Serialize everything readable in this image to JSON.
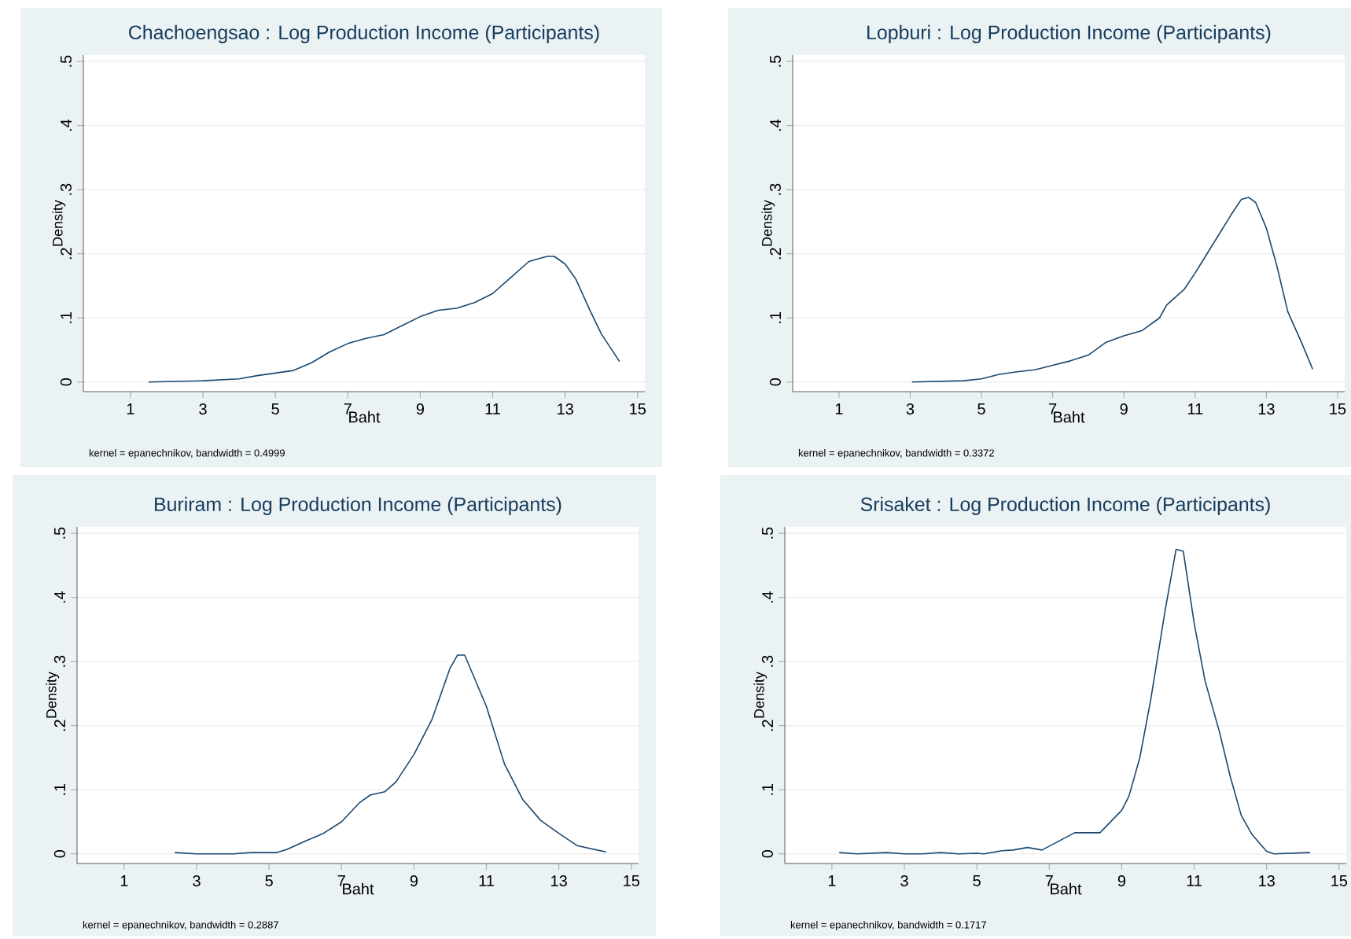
{
  "chart_data": [
    {
      "type": "line",
      "title": "Chachoengsao : Log Production Income (Participants)",
      "xlabel": "Baht",
      "ylabel": "Density",
      "color": "#1a476f",
      "grid": "y",
      "xlim": [
        -0.3,
        15.2
      ],
      "ylim": [
        -0.015,
        0.51
      ],
      "xticks": [
        1,
        3,
        5,
        7,
        9,
        11,
        13,
        15
      ],
      "yticks": [
        0,
        {
          "value": 0.1,
          "label": ".1"
        },
        {
          "value": 0.2,
          "label": ".2"
        },
        {
          "value": 0.3,
          "label": ".3"
        },
        {
          "value": 0.4,
          "label": ".4"
        },
        {
          "value": 0.5,
          "label": ".5"
        }
      ],
      "annotations": [
        "kernel = epanechnikov, bandwidth = 0.4999"
      ],
      "x": [
        1.5,
        3,
        4,
        4.5,
        5.5,
        6,
        6.5,
        7,
        7.5,
        8,
        8.5,
        9,
        9.5,
        10,
        10.5,
        11,
        11.5,
        12,
        12.5,
        12.7,
        13,
        13.3,
        13.7,
        14,
        14.5
      ],
      "values": [
        0,
        0.002,
        0.005,
        0.01,
        0.018,
        0.03,
        0.047,
        0.06,
        0.068,
        0.074,
        0.088,
        0.102,
        0.112,
        0.115,
        0.124,
        0.138,
        0.163,
        0.188,
        0.196,
        0.196,
        0.184,
        0.16,
        0.11,
        0.075,
        0.032
      ]
    },
    {
      "type": "line",
      "title": "Lopburi : Log Production Income (Participants)",
      "xlabel": "Baht",
      "ylabel": "Density",
      "color": "#1a476f",
      "grid": "y",
      "xlim": [
        -0.3,
        15.2
      ],
      "ylim": [
        -0.015,
        0.51
      ],
      "xticks": [
        1,
        3,
        5,
        7,
        9,
        11,
        13,
        15
      ],
      "yticks": [
        0,
        {
          "value": 0.1,
          "label": ".1"
        },
        {
          "value": 0.2,
          "label": ".2"
        },
        {
          "value": 0.3,
          "label": ".3"
        },
        {
          "value": 0.4,
          "label": ".4"
        },
        {
          "value": 0.5,
          "label": ".5"
        }
      ],
      "annotations": [
        "kernel = epanechnikov, bandwidth = 0.3372"
      ],
      "x": [
        3.05,
        4.5,
        5,
        5.5,
        6,
        6.5,
        7,
        7.5,
        8,
        8.5,
        9,
        9.5,
        10,
        10.2,
        10.7,
        11,
        11.5,
        12,
        12.3,
        12.5,
        12.7,
        13,
        13.3,
        13.6,
        14,
        14.3
      ],
      "values": [
        0,
        0.002,
        0.005,
        0.012,
        0.016,
        0.019,
        0.026,
        0.033,
        0.042,
        0.062,
        0.072,
        0.08,
        0.1,
        0.12,
        0.145,
        0.17,
        0.215,
        0.26,
        0.285,
        0.288,
        0.28,
        0.24,
        0.18,
        0.11,
        0.06,
        0.02
      ]
    },
    {
      "type": "line",
      "title": "Buriram : Log Production Income (Participants)",
      "xlabel": "Baht",
      "ylabel": "Density",
      "color": "#1a476f",
      "grid": "y",
      "xlim": [
        -0.3,
        15.2
      ],
      "ylim": [
        -0.015,
        0.51
      ],
      "xticks": [
        1,
        3,
        5,
        7,
        9,
        11,
        13,
        15
      ],
      "yticks": [
        0,
        {
          "value": 0.1,
          "label": ".1"
        },
        {
          "value": 0.2,
          "label": ".2"
        },
        {
          "value": 0.3,
          "label": ".3"
        },
        {
          "value": 0.4,
          "label": ".4"
        },
        {
          "value": 0.5,
          "label": ".5"
        }
      ],
      "annotations": [
        "kernel = epanechnikov, bandwidth = 0.2887"
      ],
      "x": [
        2.4,
        3,
        4,
        4.5,
        5.2,
        5.5,
        6,
        6.5,
        7,
        7.5,
        7.8,
        8.2,
        8.5,
        9,
        9.5,
        10,
        10.2,
        10.4,
        11,
        11.5,
        12,
        12.5,
        13,
        13.5,
        14.3
      ],
      "values": [
        0.002,
        0,
        0,
        0.002,
        0.002,
        0.007,
        0.02,
        0.032,
        0.05,
        0.08,
        0.092,
        0.097,
        0.112,
        0.155,
        0.21,
        0.29,
        0.31,
        0.31,
        0.23,
        0.14,
        0.085,
        0.052,
        0.032,
        0.013,
        0.003
      ]
    },
    {
      "type": "line",
      "title": "Srisaket : Log Production Income (Participants)",
      "xlabel": "Baht",
      "ylabel": "Density",
      "color": "#1a476f",
      "grid": "y",
      "xlim": [
        -0.3,
        15.2
      ],
      "ylim": [
        -0.015,
        0.51
      ],
      "xticks": [
        1,
        3,
        5,
        7,
        9,
        11,
        13,
        15
      ],
      "yticks": [
        0,
        {
          "value": 0.1,
          "label": ".1"
        },
        {
          "value": 0.2,
          "label": ".2"
        },
        {
          "value": 0.3,
          "label": ".3"
        },
        {
          "value": 0.4,
          "label": ".4"
        },
        {
          "value": 0.5,
          "label": ".5"
        }
      ],
      "annotations": [
        "kernel = epanechnikov, bandwidth = 0.1717"
      ],
      "x": [
        1.2,
        1.7,
        2.5,
        3,
        3.5,
        4,
        4.5,
        5,
        5.2,
        5.7,
        6,
        6.4,
        6.8,
        7.2,
        7.7,
        8.4,
        9,
        9.2,
        9.5,
        9.8,
        10.2,
        10.5,
        10.7,
        11,
        11.3,
        11.7,
        12,
        12.3,
        12.6,
        13,
        13.2,
        14.2
      ],
      "values": [
        0.002,
        0,
        0.002,
        0,
        0,
        0.002,
        0,
        0.001,
        0,
        0.005,
        0.006,
        0.01,
        0.006,
        0.018,
        0.033,
        0.033,
        0.068,
        0.09,
        0.15,
        0.24,
        0.38,
        0.475,
        0.472,
        0.36,
        0.27,
        0.19,
        0.12,
        0.06,
        0.03,
        0.004,
        0,
        0.002
      ]
    }
  ]
}
